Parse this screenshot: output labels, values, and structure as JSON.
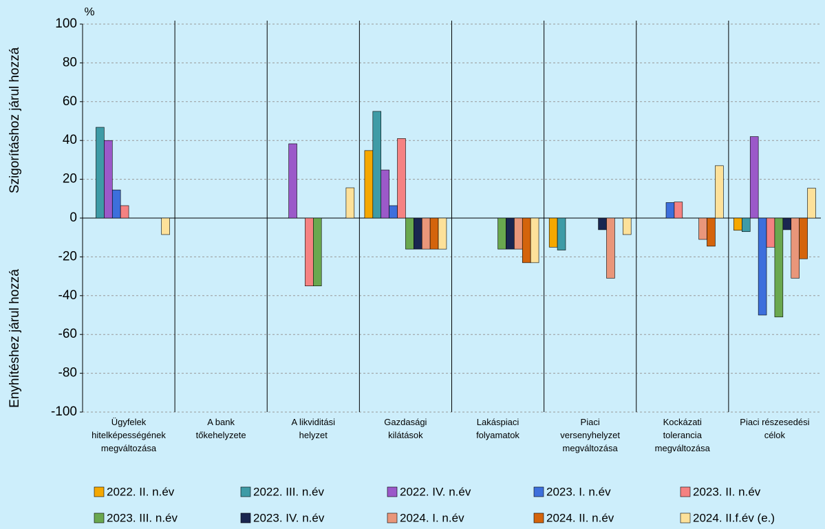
{
  "chart_data": {
    "type": "bar",
    "unit_label": "%",
    "y_label_upper": "Szigorításhoz járul hozzá",
    "y_label_lower": "Enyhítéshez járul hozzá",
    "categories": [
      "Ügyfelek\nhitelképességének\nmegváltozása",
      "A bank\ntőkehelyzete",
      "A likviditási\nhelyzet",
      "Gazdasági\nkilátások",
      "Lakáspiaci\nfolyamatok",
      "Piaci\nversenyhelyzet\nmegváltozása",
      "Kockázati\ntolerancia\nmegváltozása",
      "Piaci részesedési\ncélok"
    ],
    "series": [
      {
        "name": "2022. II. n.év",
        "color": "#f5a800",
        "values": [
          0,
          0,
          0,
          34.8,
          0,
          -15,
          0,
          -6.3
        ]
      },
      {
        "name": "2022. III. n.év",
        "color": "#3e9ba6",
        "values": [
          46.8,
          0,
          0,
          55,
          0,
          -16.5,
          0,
          -7
        ]
      },
      {
        "name": "2022. IV. n.év",
        "color": "#9b59c9",
        "values": [
          40,
          0,
          38.3,
          24.8,
          0,
          0,
          0,
          42
        ]
      },
      {
        "name": "2023. I. n.év",
        "color": "#3d6fdc",
        "values": [
          14.5,
          0,
          0,
          6.4,
          0,
          0,
          8,
          -50
        ]
      },
      {
        "name": "2023. II. n.év",
        "color": "#f58282",
        "values": [
          6.4,
          0,
          -35,
          41,
          0,
          0,
          8.3,
          -15
        ]
      },
      {
        "name": "2023. III. n.év",
        "color": "#6aa84f",
        "values": [
          0,
          0,
          -35,
          -16,
          -16,
          0,
          0,
          -51
        ]
      },
      {
        "name": "2023. IV. n.év",
        "color": "#1a2650",
        "values": [
          0,
          0,
          0,
          -16,
          -16,
          -6,
          0,
          -6
        ]
      },
      {
        "name": "2024. I. n.év",
        "color": "#e9967a",
        "values": [
          0,
          0,
          0,
          -16,
          -16,
          -31,
          -11,
          -31
        ]
      },
      {
        "name": "2024. II. n.év",
        "color": "#d4640c",
        "values": [
          0,
          0,
          0,
          -16,
          -23,
          0,
          -14.5,
          -21
        ]
      },
      {
        "name": "2024. II.f.év (e.)",
        "color": "#fde19a",
        "values": [
          -8.5,
          0,
          15.6,
          -16,
          -23,
          -8.5,
          27,
          15.4
        ]
      }
    ],
    "ylim": [
      -100,
      100
    ],
    "yticks": [
      -100,
      -80,
      -60,
      -40,
      -20,
      0,
      20,
      40,
      60,
      80,
      100
    ],
    "grid": true
  }
}
